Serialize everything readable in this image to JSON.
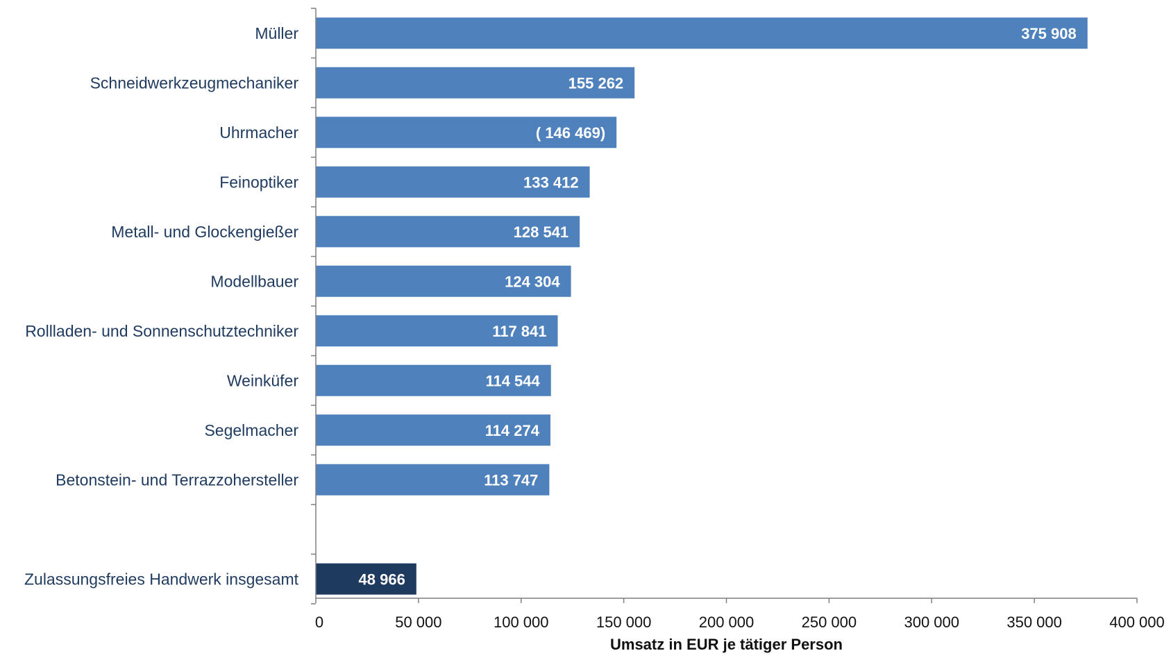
{
  "chart_data": {
    "type": "bar",
    "orientation": "horizontal",
    "title": "",
    "xlabel": "Umsatz in EUR je tätiger Person",
    "ylabel": "",
    "xlim": [
      0,
      400000
    ],
    "x_ticks": [
      0,
      50000,
      100000,
      150000,
      200000,
      250000,
      300000,
      350000,
      400000
    ],
    "x_tick_labels": [
      "0",
      "50 000",
      "100 000",
      "150 000",
      "200 000",
      "250 000",
      "300 000",
      "350 000",
      "400 000"
    ],
    "grid": false,
    "legend": "none",
    "colors": {
      "bar": "#4f81bd",
      "total_bar": "#1f3a5f",
      "axis": "#7f7f7f"
    },
    "bars": [
      {
        "category": "Müller",
        "value": 375908,
        "label": "375 908",
        "group": "trade"
      },
      {
        "category": "Schneidwerkzeugmechaniker",
        "value": 155262,
        "label": "155 262",
        "group": "trade"
      },
      {
        "category": "Uhrmacher",
        "value": 146469,
        "label": "(  146 469)",
        "group": "trade"
      },
      {
        "category": "Feinoptiker",
        "value": 133412,
        "label": "133 412",
        "group": "trade"
      },
      {
        "category": "Metall- und Glockengießer",
        "value": 128541,
        "label": "128 541",
        "group": "trade"
      },
      {
        "category": "Modellbauer",
        "value": 124304,
        "label": "124 304",
        "group": "trade"
      },
      {
        "category": "Rollladen- und Sonnenschutztechniker",
        "value": 117841,
        "label": "117 841",
        "group": "trade"
      },
      {
        "category": "Weinküfer",
        "value": 114544,
        "label": "114 544",
        "group": "trade"
      },
      {
        "category": "Segelmacher",
        "value": 114274,
        "label": "114 274",
        "group": "trade"
      },
      {
        "category": "Betonstein- und Terrazzohersteller",
        "value": 113747,
        "label": "113 747",
        "group": "trade"
      },
      {
        "category": "Zulassungsfreies Handwerk insgesamt",
        "value": 48966,
        "label": "48 966",
        "group": "total"
      }
    ]
  }
}
